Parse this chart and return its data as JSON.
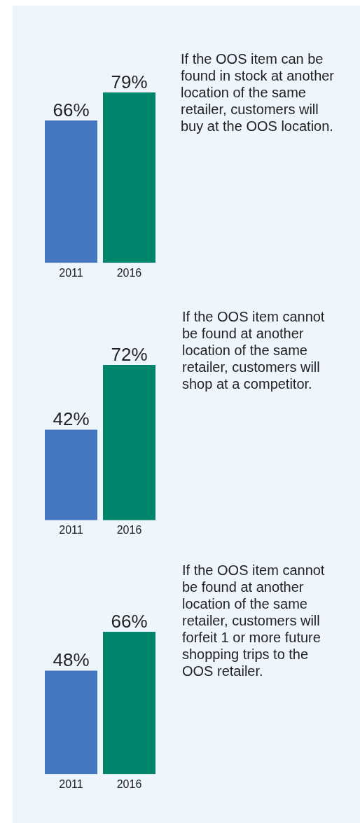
{
  "chart_data": [
    {
      "type": "bar",
      "categories": [
        "2011",
        "2016"
      ],
      "values": [
        66,
        79
      ],
      "colors": [
        "#4477c0",
        "#00846b"
      ],
      "value_labels": [
        "66%",
        "79%"
      ],
      "annotations": [
        "If the OOS item can be found in stock at another location of the same retailer, customers will buy at the OOS location."
      ]
    },
    {
      "type": "bar",
      "categories": [
        "2011",
        "2016"
      ],
      "values": [
        42,
        72
      ],
      "colors": [
        "#4477c0",
        "#00846b"
      ],
      "value_labels": [
        "42%",
        "72%"
      ],
      "annotations": [
        "If the OOS item cannot be found at another location of the same retailer, customers will shop at a competitor."
      ]
    },
    {
      "type": "bar",
      "categories": [
        "2011",
        "2016"
      ],
      "values": [
        48,
        66
      ],
      "colors": [
        "#4477c0",
        "#00846b"
      ],
      "value_labels": [
        "48%",
        "66%"
      ],
      "annotations": [
        "If the OOS item cannot be found at another location of the same retailer, customers will forfeit 1 or more future shopping trips to the OOS retailer."
      ]
    }
  ]
}
